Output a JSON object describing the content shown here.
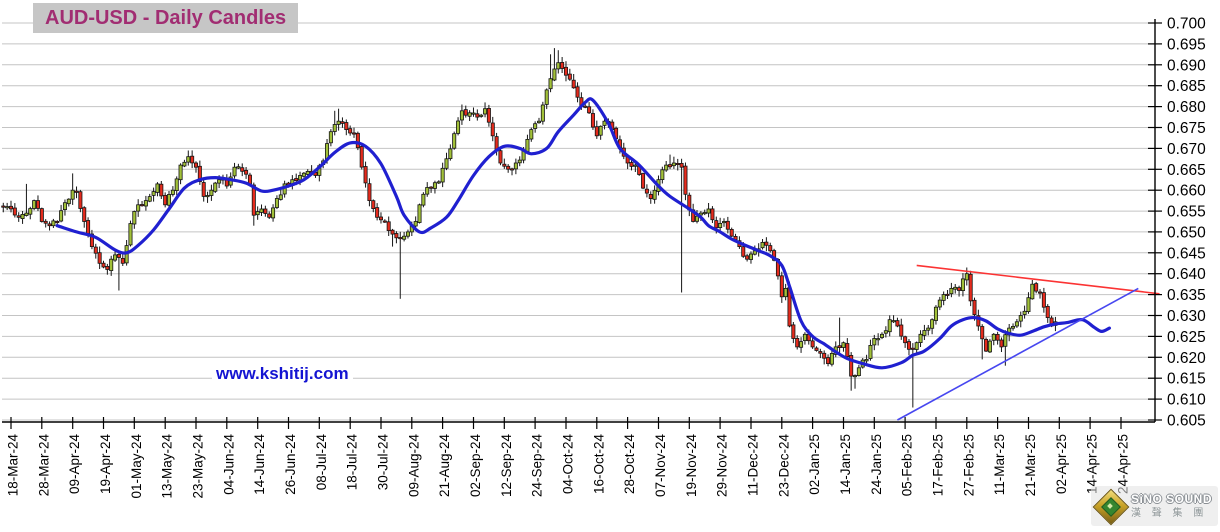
{
  "title": "AUD-USD - Daily Candles",
  "watermark": "www.kshitij.com",
  "logo": {
    "name_en": "SiNO SOUND",
    "name_cn": "漢 聲 集 團"
  },
  "colors": {
    "bull": "#A2C139",
    "bear": "#E52B1D",
    "candle_border": "#151515",
    "wick": "#151515",
    "ma_line": "#2020D0",
    "grid": "#C4C4C4",
    "axis": "#000000",
    "label": "#000000",
    "title_bg": "#C6C6C6",
    "title_fg": "#A12D72",
    "watermark": "#1414D2"
  },
  "chart_data": {
    "type": "candlestick",
    "title": "AUD-USD - Daily Candles",
    "instrument": "AUD-USD",
    "timeframe": "Daily",
    "grid": true,
    "y_axis": {
      "side": "right",
      "min": 0.605,
      "max": 0.7,
      "step": 0.005,
      "tick_labels": [
        "0.700",
        "0.695",
        "0.690",
        "0.685",
        "0.680",
        "0.675",
        "0.670",
        "0.665",
        "0.660",
        "0.655",
        "0.650",
        "0.645",
        "0.640",
        "0.635",
        "0.630",
        "0.625",
        "0.620",
        "0.615",
        "0.610",
        "0.605"
      ]
    },
    "x_axis": {
      "bars_per_tick": 8,
      "tick_labels": [
        "18-Mar-24",
        "28-Mar-24",
        "09-Apr-24",
        "19-Apr-24",
        "01-May-24",
        "13-May-24",
        "23-May-24",
        "04-Jun-24",
        "14-Jun-24",
        "26-Jun-24",
        "08-Jul-24",
        "18-Jul-24",
        "30-Jul-24",
        "09-Aug-24",
        "21-Aug-24",
        "02-Sep-24",
        "12-Sep-24",
        "24-Sep-24",
        "04-Oct-24",
        "16-Oct-24",
        "28-Oct-24",
        "07-Nov-24",
        "19-Nov-24",
        "29-Nov-24",
        "11-Dec-24",
        "23-Dec-24",
        "02-Jan-25",
        "14-Jan-25",
        "24-Jan-25",
        "05-Feb-25",
        "17-Feb-25",
        "27-Feb-25",
        "11-Mar-25",
        "21-Mar-25",
        "02-Apr-25",
        "14-Apr-25",
        "24-Apr-25"
      ]
    },
    "series": {
      "day_range": [
        -2,
        271
      ],
      "close_waypoints": [
        [
          -2,
          0.656
        ],
        [
          0,
          0.6555
        ],
        [
          2,
          0.6535
        ],
        [
          4,
          0.6545
        ],
        [
          6,
          0.6575
        ],
        [
          8,
          0.6525
        ],
        [
          10,
          0.6515
        ],
        [
          12,
          0.6525
        ],
        [
          14,
          0.657
        ],
        [
          16,
          0.66
        ],
        [
          17,
          0.6595
        ],
        [
          19,
          0.6525
        ],
        [
          21,
          0.6465
        ],
        [
          23,
          0.6425
        ],
        [
          25,
          0.641
        ],
        [
          27,
          0.6445
        ],
        [
          29,
          0.6425
        ],
        [
          31,
          0.652
        ],
        [
          33,
          0.6565
        ],
        [
          35,
          0.6575
        ],
        [
          38,
          0.6615
        ],
        [
          40,
          0.6565
        ],
        [
          42,
          0.66
        ],
        [
          44,
          0.666
        ],
        [
          46,
          0.668
        ],
        [
          48,
          0.6655
        ],
        [
          50,
          0.6585
        ],
        [
          52,
          0.66
        ],
        [
          54,
          0.6625
        ],
        [
          56,
          0.661
        ],
        [
          58,
          0.6655
        ],
        [
          60,
          0.6645
        ],
        [
          62,
          0.6615
        ],
        [
          63,
          0.654
        ],
        [
          65,
          0.6555
        ],
        [
          67,
          0.6535
        ],
        [
          69,
          0.658
        ],
        [
          71,
          0.6615
        ],
        [
          73,
          0.6625
        ],
        [
          75,
          0.6635
        ],
        [
          77,
          0.6645
        ],
        [
          79,
          0.6635
        ],
        [
          81,
          0.667
        ],
        [
          83,
          0.674
        ],
        [
          85,
          0.6765
        ],
        [
          87,
          0.6745
        ],
        [
          89,
          0.6735
        ],
        [
          91,
          0.6655
        ],
        [
          93,
          0.6575
        ],
        [
          95,
          0.6535
        ],
        [
          97,
          0.6525
        ],
        [
          99,
          0.6495
        ],
        [
          101,
          0.6485
        ],
        [
          103,
          0.65
        ],
        [
          105,
          0.6525
        ],
        [
          107,
          0.659
        ],
        [
          109,
          0.6605
        ],
        [
          111,
          0.662
        ],
        [
          113,
          0.6675
        ],
        [
          115,
          0.6735
        ],
        [
          117,
          0.679
        ],
        [
          119,
          0.6785
        ],
        [
          121,
          0.6775
        ],
        [
          123,
          0.6795
        ],
        [
          125,
          0.673
        ],
        [
          127,
          0.6665
        ],
        [
          129,
          0.665
        ],
        [
          131,
          0.6665
        ],
        [
          133,
          0.6695
        ],
        [
          135,
          0.6745
        ],
        [
          137,
          0.6765
        ],
        [
          139,
          0.684
        ],
        [
          141,
          0.689
        ],
        [
          142,
          0.6905
        ],
        [
          144,
          0.6875
        ],
        [
          146,
          0.6845
        ],
        [
          148,
          0.68
        ],
        [
          150,
          0.6785
        ],
        [
          152,
          0.673
        ],
        [
          154,
          0.6765
        ],
        [
          156,
          0.6745
        ],
        [
          158,
          0.67
        ],
        [
          160,
          0.6665
        ],
        [
          162,
          0.666
        ],
        [
          164,
          0.6605
        ],
        [
          166,
          0.658
        ],
        [
          168,
          0.6625
        ],
        [
          170,
          0.666
        ],
        [
          172,
          0.6665
        ],
        [
          174,
          0.6655
        ],
        [
          175,
          0.659
        ],
        [
          177,
          0.6525
        ],
        [
          179,
          0.6545
        ],
        [
          181,
          0.6555
        ],
        [
          183,
          0.651
        ],
        [
          185,
          0.6525
        ],
        [
          187,
          0.649
        ],
        [
          189,
          0.6465
        ],
        [
          191,
          0.6435
        ],
        [
          193,
          0.6455
        ],
        [
          195,
          0.6475
        ],
        [
          197,
          0.6455
        ],
        [
          199,
          0.6395
        ],
        [
          200,
          0.6345
        ],
        [
          201,
          0.6365
        ],
        [
          202,
          0.6275
        ],
        [
          204,
          0.6225
        ],
        [
          206,
          0.6255
        ],
        [
          208,
          0.6225
        ],
        [
          210,
          0.621
        ],
        [
          212,
          0.6185
        ],
        [
          214,
          0.6225
        ],
        [
          216,
          0.6235
        ],
        [
          218,
          0.6155
        ],
        [
          220,
          0.6175
        ],
        [
          222,
          0.6195
        ],
        [
          224,
          0.6245
        ],
        [
          226,
          0.6255
        ],
        [
          228,
          0.629
        ],
        [
          230,
          0.6275
        ],
        [
          232,
          0.6235
        ],
        [
          234,
          0.622
        ],
        [
          236,
          0.6255
        ],
        [
          238,
          0.627
        ],
        [
          240,
          0.632
        ],
        [
          242,
          0.635
        ],
        [
          244,
          0.6365
        ],
        [
          246,
          0.636
        ],
        [
          248,
          0.64
        ],
        [
          249,
          0.6335
        ],
        [
          251,
          0.6275
        ],
        [
          253,
          0.6215
        ],
        [
          255,
          0.6255
        ],
        [
          257,
          0.6225
        ],
        [
          259,
          0.627
        ],
        [
          261,
          0.6285
        ],
        [
          263,
          0.631
        ],
        [
          265,
          0.6375
        ],
        [
          267,
          0.6355
        ],
        [
          268,
          0.632
        ],
        [
          269,
          0.6295
        ],
        [
          270,
          0.6275
        ],
        [
          271,
          0.6285
        ]
      ],
      "wick_low_overrides": {
        "28": 0.636,
        "63": 0.6515,
        "99": 0.6465,
        "101": 0.634,
        "174": 0.6355,
        "218": 0.612,
        "219": 0.6125,
        "234": 0.608,
        "252": 0.6195,
        "258": 0.618
      },
      "wick_high_overrides": {
        "4": 0.6615,
        "16": 0.664,
        "46": 0.6695,
        "84": 0.679,
        "85": 0.6795,
        "117": 0.6805,
        "123": 0.681,
        "140": 0.6925,
        "141": 0.694,
        "142": 0.6935,
        "171": 0.6685,
        "172": 0.668,
        "215": 0.6295,
        "248": 0.6415,
        "265": 0.6385
      },
      "ma_waypoints": [
        [
          12,
          0.6515
        ],
        [
          17,
          0.65
        ],
        [
          22,
          0.6487
        ],
        [
          27,
          0.6457
        ],
        [
          30,
          0.645
        ],
        [
          33,
          0.6468
        ],
        [
          37,
          0.6505
        ],
        [
          41,
          0.6555
        ],
        [
          45,
          0.6605
        ],
        [
          49,
          0.6625
        ],
        [
          53,
          0.663
        ],
        [
          57,
          0.6625
        ],
        [
          61,
          0.6617
        ],
        [
          65,
          0.6598
        ],
        [
          68,
          0.66
        ],
        [
          72,
          0.661
        ],
        [
          76,
          0.6625
        ],
        [
          80,
          0.6655
        ],
        [
          84,
          0.669
        ],
        [
          88,
          0.6713
        ],
        [
          92,
          0.6705
        ],
        [
          96,
          0.6663
        ],
        [
          100,
          0.6585
        ],
        [
          102,
          0.654
        ],
        [
          106,
          0.65
        ],
        [
          109,
          0.651
        ],
        [
          113,
          0.6535
        ],
        [
          116,
          0.6575
        ],
        [
          120,
          0.6635
        ],
        [
          124,
          0.668
        ],
        [
          128,
          0.6705
        ],
        [
          132,
          0.67
        ],
        [
          135,
          0.6687
        ],
        [
          139,
          0.67
        ],
        [
          142,
          0.674
        ],
        [
          146,
          0.678
        ],
        [
          149,
          0.681
        ],
        [
          151,
          0.6815
        ],
        [
          155,
          0.676
        ],
        [
          158,
          0.67
        ],
        [
          163,
          0.666
        ],
        [
          168,
          0.661
        ],
        [
          171,
          0.6585
        ],
        [
          176,
          0.6555
        ],
        [
          179,
          0.6535
        ],
        [
          181,
          0.6515
        ],
        [
          184,
          0.65
        ],
        [
          187,
          0.6483
        ],
        [
          190,
          0.647
        ],
        [
          194,
          0.6455
        ],
        [
          197,
          0.6443
        ],
        [
          200,
          0.642
        ],
        [
          202,
          0.637
        ],
        [
          205,
          0.6287
        ],
        [
          208,
          0.625
        ],
        [
          211,
          0.6232
        ],
        [
          214,
          0.6213
        ],
        [
          217,
          0.6197
        ],
        [
          221,
          0.6185
        ],
        [
          226,
          0.6175
        ],
        [
          231,
          0.6187
        ],
        [
          234,
          0.6205
        ],
        [
          237,
          0.6215
        ],
        [
          241,
          0.6245
        ],
        [
          244,
          0.6275
        ],
        [
          247,
          0.629
        ],
        [
          250,
          0.6295
        ],
        [
          253,
          0.6287
        ],
        [
          256,
          0.6268
        ],
        [
          259,
          0.6257
        ],
        [
          262,
          0.6253
        ],
        [
          265,
          0.6262
        ],
        [
          268,
          0.6273
        ],
        [
          271,
          0.628
        ],
        [
          274,
          0.6283
        ],
        [
          278,
          0.629
        ],
        [
          281,
          0.6272
        ],
        [
          283,
          0.6262
        ],
        [
          285,
          0.627
        ]
      ]
    },
    "trendlines": [
      {
        "name": "descending-resistance",
        "color": "#FB3333",
        "from": {
          "day": 235,
          "price": 0.642
        },
        "to": {
          "day": 298,
          "price": 0.6352
        }
      },
      {
        "name": "ascending-support",
        "color": "#4747F0",
        "from": {
          "day": 230,
          "price": 0.605
        },
        "to": {
          "day": 292.5,
          "price": 0.6365
        }
      }
    ]
  }
}
